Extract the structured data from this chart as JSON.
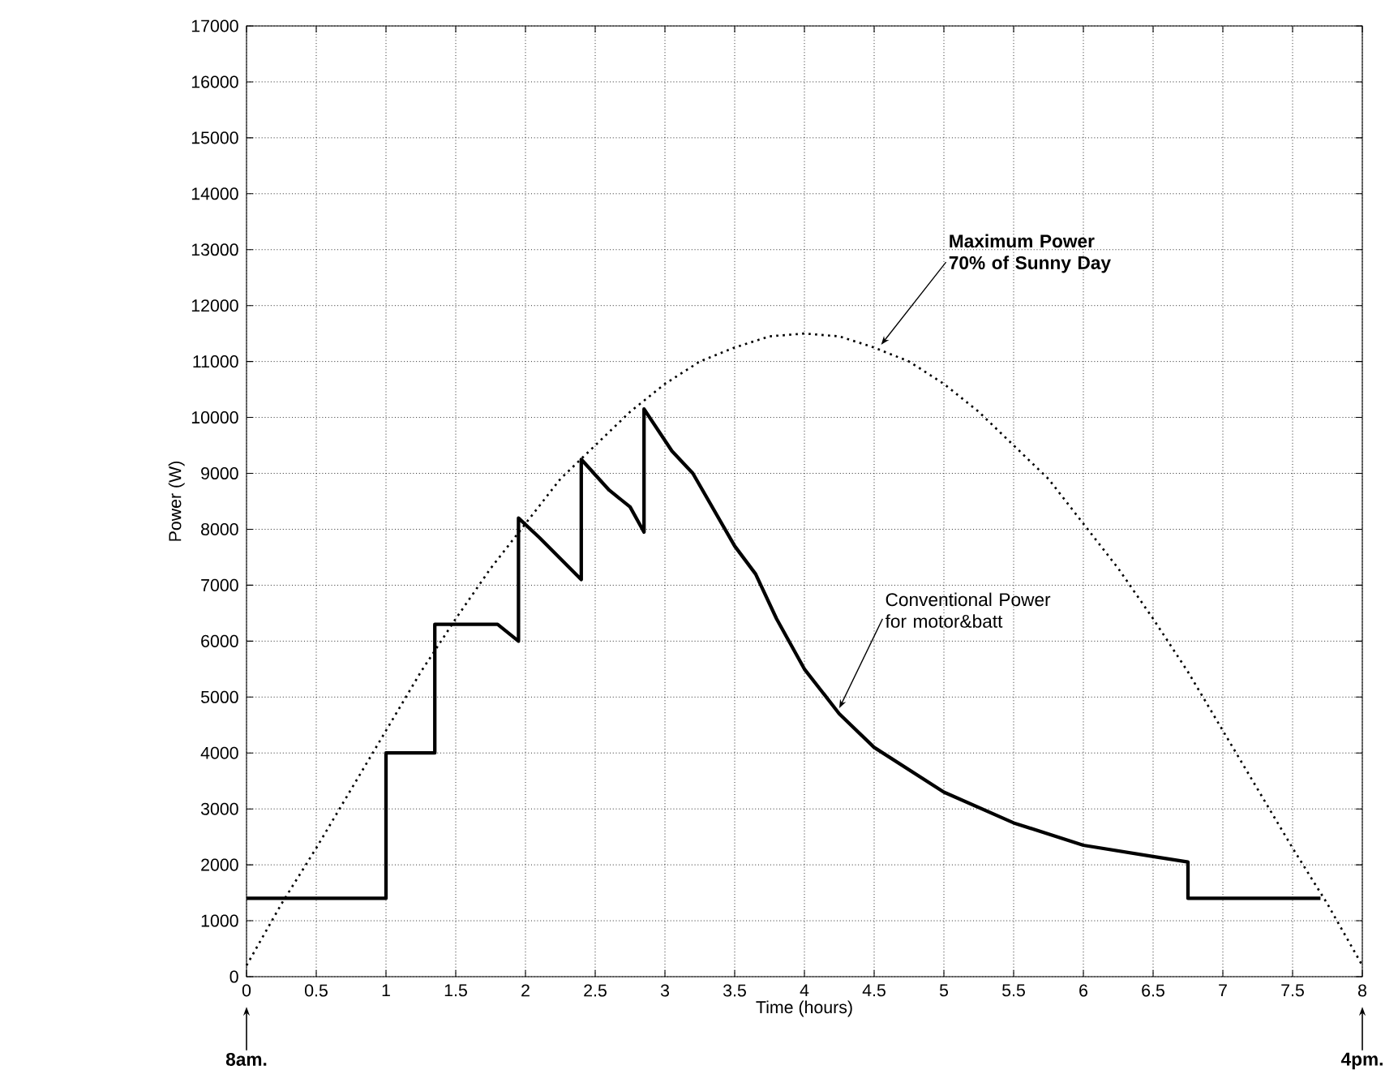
{
  "chart_data": {
    "type": "line",
    "xlabel": "Time (hours)",
    "ylabel": "Power (W)",
    "xlim": [
      0,
      8
    ],
    "ylim": [
      0,
      17000
    ],
    "xticks": [
      0,
      0.5,
      1,
      1.5,
      2,
      2.5,
      3,
      3.5,
      4,
      4.5,
      5,
      5.5,
      6,
      6.5,
      7,
      7.5,
      8
    ],
    "yticks": [
      0,
      1000,
      2000,
      3000,
      4000,
      5000,
      6000,
      7000,
      8000,
      9000,
      10000,
      11000,
      12000,
      13000,
      14000,
      15000,
      16000,
      17000
    ],
    "grid": true,
    "marker": "none",
    "series": [
      {
        "color": "#000000",
        "line_style": "dotted",
        "x": [
          0,
          0.25,
          0.5,
          0.75,
          1,
          1.25,
          1.5,
          1.75,
          2,
          2.25,
          2.5,
          2.75,
          3,
          3.25,
          3.5,
          3.75,
          4,
          4.25,
          4.5,
          4.75,
          5,
          5.25,
          5.5,
          5.75,
          6,
          6.25,
          6.5,
          6.75,
          7,
          7.25,
          7.5,
          7.75,
          8
        ],
        "values": [
          200,
          1300,
          2300,
          3350,
          4400,
          5450,
          6400,
          7300,
          8100,
          8900,
          9500,
          10100,
          10600,
          11000,
          11250,
          11450,
          11500,
          11450,
          11250,
          11000,
          10600,
          10100,
          9500,
          8900,
          8100,
          7300,
          6400,
          5450,
          4400,
          3350,
          2300,
          1300,
          200
        ]
      },
      {
        "color": "#000000",
        "line_style": "solid",
        "x": [
          0,
          1,
          1,
          1.35,
          1.35,
          1.8,
          1.95,
          1.95,
          2.1,
          2.4,
          2.4,
          2.6,
          2.75,
          2.85,
          2.85,
          3.05,
          3.2,
          3.5,
          3.65,
          3.8,
          4,
          4.25,
          4.5,
          5,
          5.5,
          6,
          6.5,
          6.75,
          6.75,
          7.7
        ],
        "values": [
          1400,
          1400,
          4000,
          4000,
          6300,
          6300,
          6000,
          8200,
          7850,
          7100,
          9250,
          8700,
          8400,
          7950,
          10150,
          9400,
          9000,
          7700,
          7200,
          6400,
          5500,
          4700,
          4100,
          3300,
          2750,
          2350,
          2150,
          2050,
          1400,
          1400
        ]
      }
    ],
    "annotations": [
      {
        "text": "Maximum Power 70% of Sunny Day",
        "x": 4.55,
        "y": 11300
      },
      {
        "text": "Conventional Power for motor&batt",
        "x": 4.25,
        "y": 4800
      },
      "8am.",
      "4pm."
    ]
  }
}
